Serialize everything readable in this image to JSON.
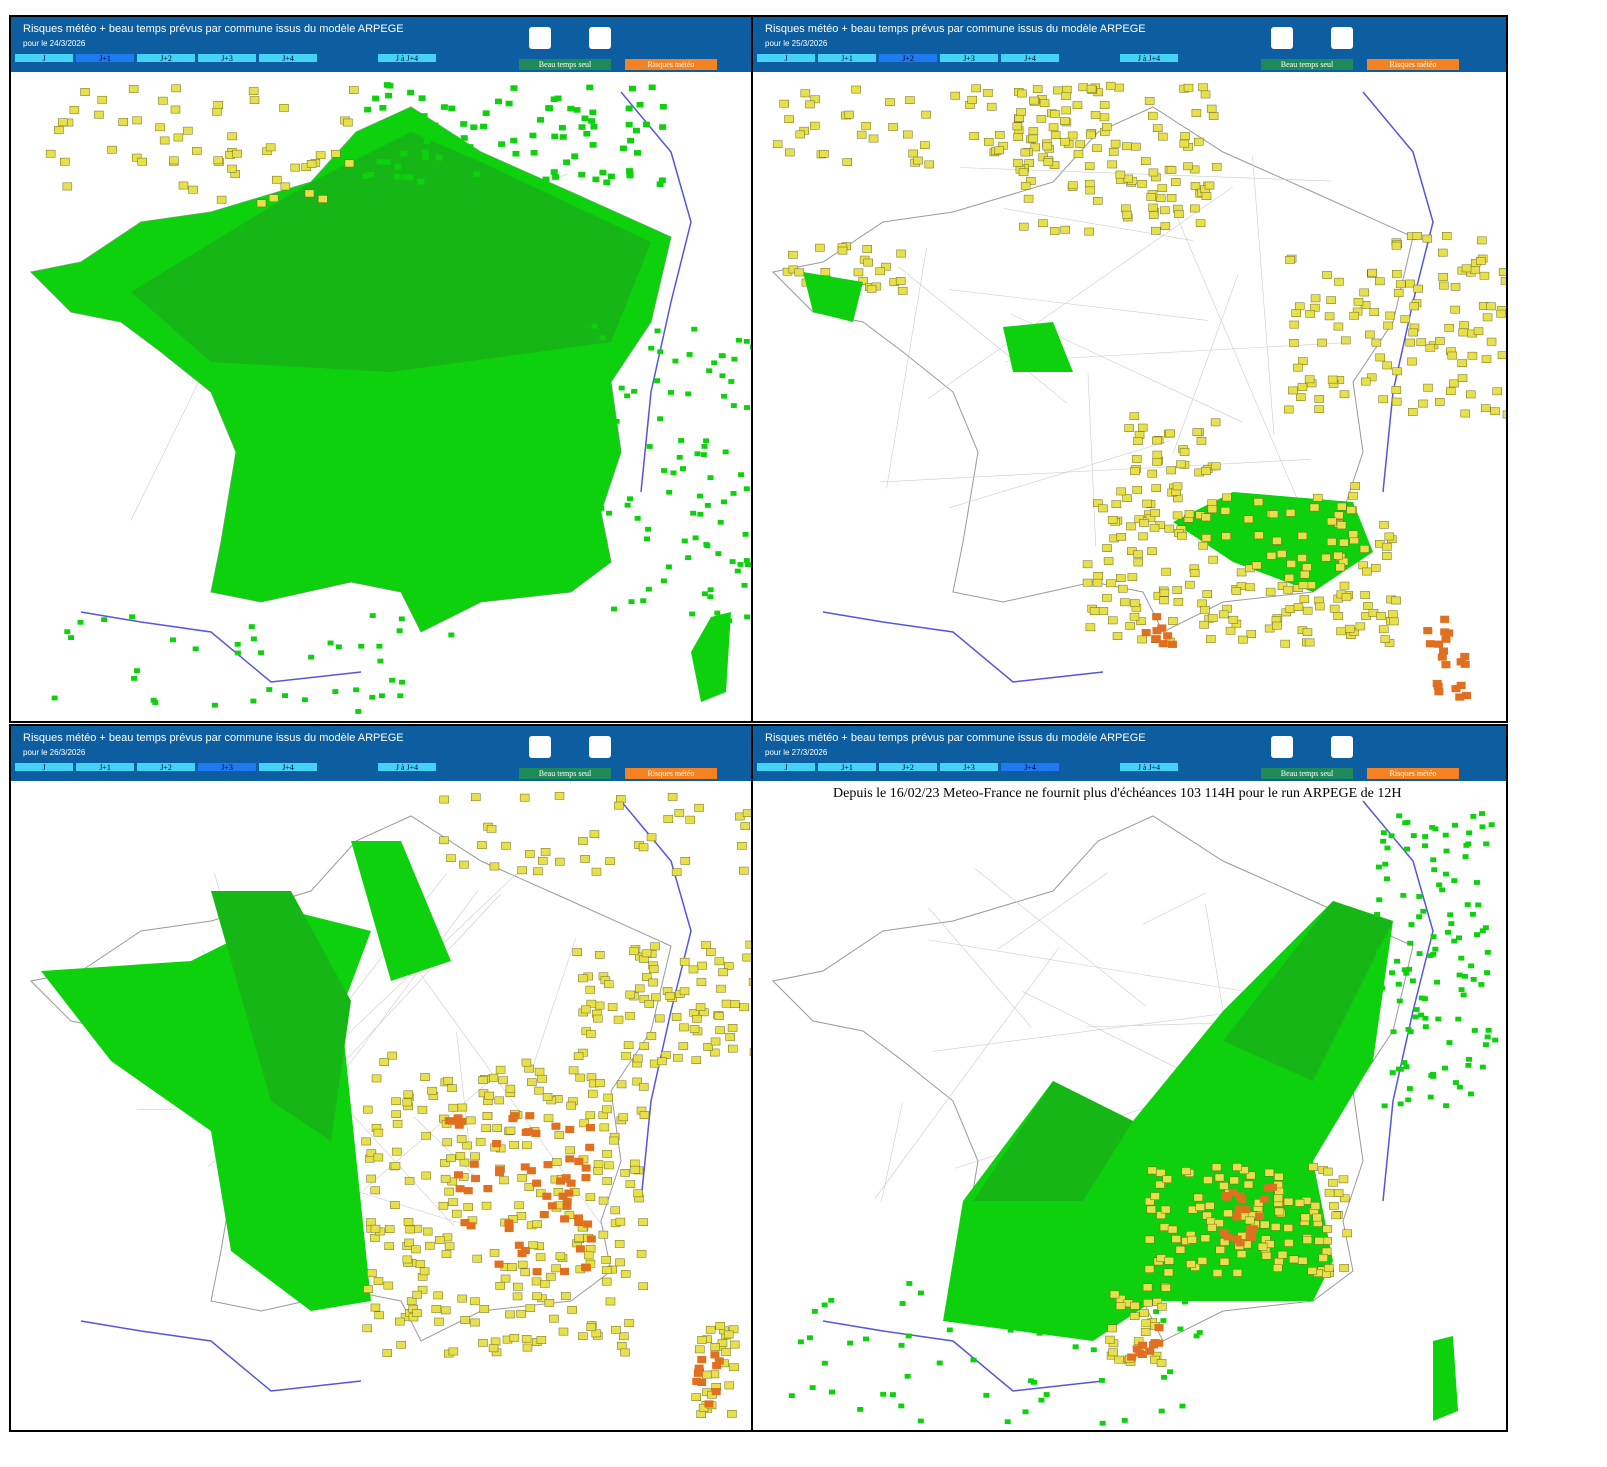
{
  "panels": [
    {
      "title": "Risques météo + beau temps prévus par commune issus du modèle ARPEGE",
      "date": "pour le 24/3/2026",
      "tabs": [
        "J",
        "J+1",
        "J+2",
        "J+3",
        "J+4",
        "J à J+4"
      ],
      "buttons": [
        "Beau temps seul",
        "Risques météo"
      ]
    },
    {
      "title": "Risques météo + beau temps prévus par commune issus du modèle ARPEGE",
      "date": "pour le 25/3/2026",
      "tabs": [
        "J",
        "J+1",
        "J+2",
        "J+3",
        "J+4",
        "J à J+4"
      ],
      "buttons": [
        "Beau temps seul",
        "Risques météo"
      ]
    },
    {
      "title": "Risques météo + beau temps prévus par commune issus du modèle ARPEGE",
      "date": "pour le 26/3/2026",
      "tabs": [
        "J",
        "J+1",
        "J+2",
        "J+3",
        "J+4",
        "J à J+4"
      ],
      "buttons": [
        "Beau temps seul",
        "Risques météo"
      ]
    },
    {
      "title": "Risques météo + beau temps prévus par commune issus du modèle ARPEGE",
      "date": "pour le 27/3/2026",
      "tabs": [
        "J",
        "J+1",
        "J+2",
        "J+3",
        "J+4",
        "J à J+4"
      ],
      "buttons": [
        "Beau temps seul",
        "Risques météo"
      ],
      "note": "Depuis le 16/02/23 Meteo-France ne fournit plus d'échéances 103 114H pour le run ARPEGE de 12H"
    }
  ]
}
